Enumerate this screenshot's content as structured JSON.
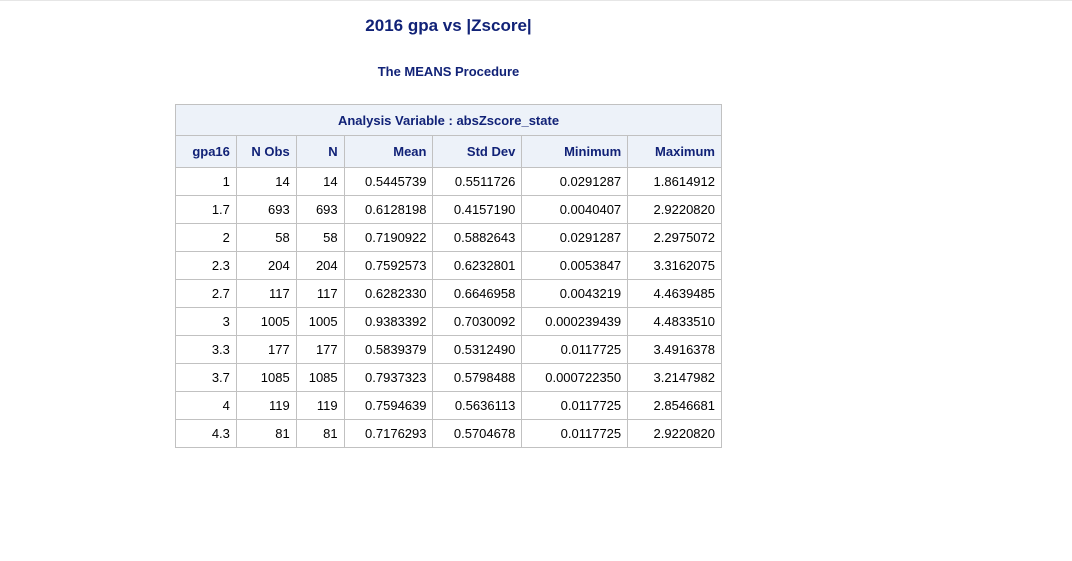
{
  "title": "2016 gpa vs |Zscore|",
  "subtitle": "The MEANS Procedure",
  "table": {
    "caption": "Analysis Variable : absZscore_state",
    "headers": [
      "gpa16",
      "N Obs",
      "N",
      "Mean",
      "Std Dev",
      "Minimum",
      "Maximum"
    ],
    "rows": [
      [
        "1",
        "14",
        "14",
        "0.5445739",
        "0.5511726",
        "0.0291287",
        "1.8614912"
      ],
      [
        "1.7",
        "693",
        "693",
        "0.6128198",
        "0.4157190",
        "0.0040407",
        "2.9220820"
      ],
      [
        "2",
        "58",
        "58",
        "0.7190922",
        "0.5882643",
        "0.0291287",
        "2.2975072"
      ],
      [
        "2.3",
        "204",
        "204",
        "0.7592573",
        "0.6232801",
        "0.0053847",
        "3.3162075"
      ],
      [
        "2.7",
        "117",
        "117",
        "0.6282330",
        "0.6646958",
        "0.0043219",
        "4.4639485"
      ],
      [
        "3",
        "1005",
        "1005",
        "0.9383392",
        "0.7030092",
        "0.000239439",
        "4.4833510"
      ],
      [
        "3.3",
        "177",
        "177",
        "0.5839379",
        "0.5312490",
        "0.0117725",
        "3.4916378"
      ],
      [
        "3.7",
        "1085",
        "1085",
        "0.7937323",
        "0.5798488",
        "0.000722350",
        "3.2147982"
      ],
      [
        "4",
        "119",
        "119",
        "0.7594639",
        "0.5636113",
        "0.0117725",
        "2.8546681"
      ],
      [
        "4.3",
        "81",
        "81",
        "0.7176293",
        "0.5704678",
        "0.0117725",
        "2.9220820"
      ]
    ]
  },
  "colors": {
    "title_text": "#112277",
    "header_bg": "#edf2f9",
    "border": "#c1c1c1"
  }
}
